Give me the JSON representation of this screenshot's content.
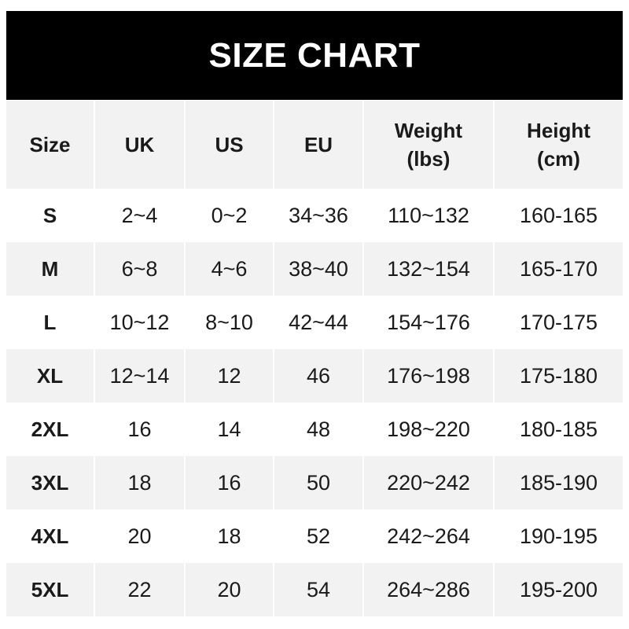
{
  "title": "SIZE CHART",
  "headers": [
    "Size",
    "UK",
    "US",
    "EU",
    "Weight\n(lbs)",
    "Height\n(cm)"
  ],
  "header_lines": [
    [
      "Size"
    ],
    [
      "UK"
    ],
    [
      "US"
    ],
    [
      "EU"
    ],
    [
      "Weight",
      "(lbs)"
    ],
    [
      "Height",
      "(cm)"
    ]
  ],
  "rows": [
    [
      "S",
      "2~4",
      "0~2",
      "34~36",
      "110~132",
      "160-165"
    ],
    [
      "M",
      "6~8",
      "4~6",
      "38~40",
      "132~154",
      "165-170"
    ],
    [
      "L",
      "10~12",
      "8~10",
      "42~44",
      "154~176",
      "170-175"
    ],
    [
      "XL",
      "12~14",
      "12",
      "46",
      "176~198",
      "175-180"
    ],
    [
      "2XL",
      "16",
      "14",
      "48",
      "198~220",
      "180-185"
    ],
    [
      "3XL",
      "18",
      "16",
      "50",
      "220~242",
      "185-190"
    ],
    [
      "4XL",
      "20",
      "18",
      "52",
      "242~264",
      "190-195"
    ],
    [
      "5XL",
      "22",
      "20",
      "54",
      "264~286",
      "195-200"
    ]
  ],
  "colors": {
    "title_bg": "#000000",
    "title_text": "#ffffff",
    "stripe": "#f2f2f2"
  }
}
